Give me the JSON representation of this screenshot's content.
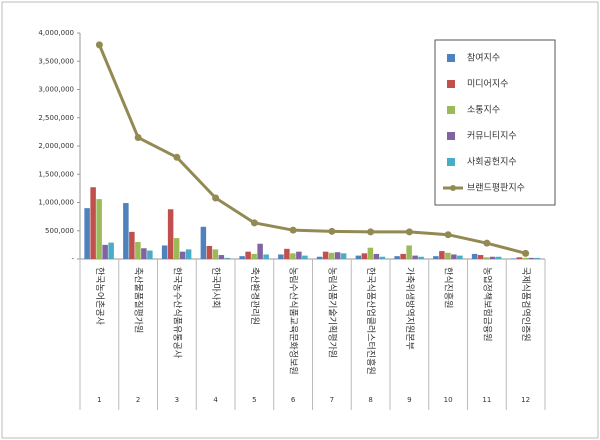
{
  "chart_data": {
    "type": "bar_line",
    "categories": [
      "한국농어촌공사",
      "축산물품질평가원",
      "한국농수산식품유통공사",
      "한국마사회",
      "축산환경관리원",
      "농림수산식품교육문화정보원",
      "농림식품기술기획평가원",
      "한국식품산업클러스터진흥원",
      "가축위생방역지원본부",
      "한식진흥원",
      "농업정책보험금융원",
      "국제식품검역인증원"
    ],
    "category_numbers": [
      1,
      2,
      3,
      4,
      5,
      6,
      7,
      8,
      9,
      10,
      11,
      12
    ],
    "series": [
      {
        "name": "참여지수",
        "color": "#4f81bd",
        "type": "bar",
        "values": [
          900000,
          990000,
          240000,
          570000,
          50000,
          80000,
          40000,
          60000,
          50000,
          50000,
          90000,
          10000
        ]
      },
      {
        "name": "미디어지수",
        "color": "#c0504d",
        "type": "bar",
        "values": [
          1270000,
          480000,
          880000,
          230000,
          130000,
          180000,
          130000,
          100000,
          90000,
          140000,
          70000,
          30000
        ]
      },
      {
        "name": "소통지수",
        "color": "#9bbb59",
        "type": "bar",
        "values": [
          1060000,
          300000,
          370000,
          170000,
          90000,
          100000,
          110000,
          200000,
          240000,
          110000,
          30000,
          20000
        ]
      },
      {
        "name": "커뮤니티지수",
        "color": "#8064a2",
        "type": "bar",
        "values": [
          250000,
          190000,
          130000,
          70000,
          270000,
          130000,
          120000,
          90000,
          60000,
          80000,
          40000,
          20000
        ]
      },
      {
        "name": "사회공헌지수",
        "color": "#4bacc6",
        "type": "bar",
        "values": [
          290000,
          150000,
          170000,
          20000,
          80000,
          60000,
          100000,
          40000,
          40000,
          60000,
          40000,
          20000
        ]
      },
      {
        "name": "브랜드평판지수",
        "color": "#938953",
        "type": "line",
        "values": [
          3790000,
          2150000,
          1800000,
          1080000,
          640000,
          510000,
          490000,
          480000,
          480000,
          430000,
          280000,
          100000
        ]
      }
    ],
    "ylim": [
      0,
      4000000
    ],
    "yticks": [
      {
        "value": 0,
        "label": "-"
      },
      {
        "value": 500000,
        "label": "500,000"
      },
      {
        "value": 1000000,
        "label": "1,000,000"
      },
      {
        "value": 1500000,
        "label": "1,500,000"
      },
      {
        "value": 2000000,
        "label": "2,000,000"
      },
      {
        "value": 2500000,
        "label": "2,500,000"
      },
      {
        "value": 3000000,
        "label": "3,000,000"
      },
      {
        "value": 3500000,
        "label": "3,500,000"
      },
      {
        "value": 4000000,
        "label": "4,000,000"
      }
    ],
    "legend": "upper right"
  }
}
